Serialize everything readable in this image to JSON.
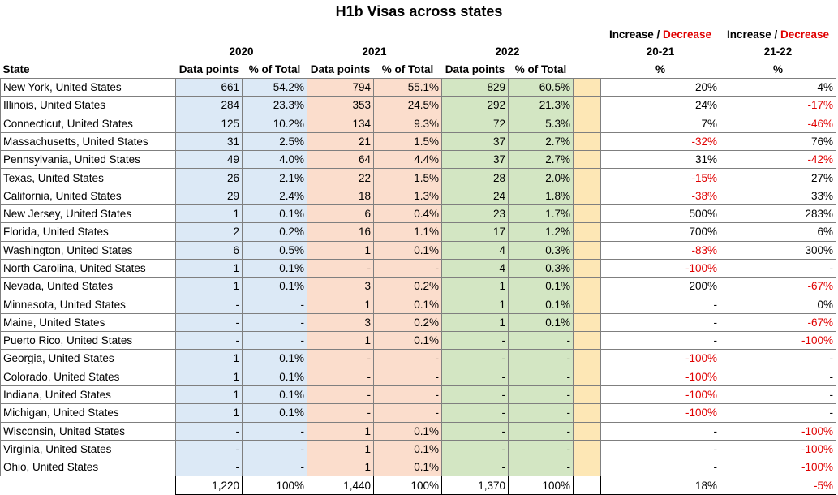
{
  "title": "H1b Visas across states",
  "header": {
    "inc_word": "Increase",
    "slash": " / ",
    "dec_word": "Decrease",
    "years": [
      "2020",
      "2021",
      "2022"
    ],
    "periods": [
      "20-21",
      "21-22"
    ],
    "state_label": "State",
    "dp_label": "Data points",
    "pct_label": "% of Total",
    "pct_sign": "%"
  },
  "rows": [
    [
      "New York, United States",
      "661",
      "54.2%",
      "794",
      "55.1%",
      "829",
      "60.5%",
      "20%",
      "4%"
    ],
    [
      "Illinois, United States",
      "284",
      "23.3%",
      "353",
      "24.5%",
      "292",
      "21.3%",
      "24%",
      "-17%"
    ],
    [
      "Connecticut, United States",
      "125",
      "10.2%",
      "134",
      "9.3%",
      "72",
      "5.3%",
      "7%",
      "-46%"
    ],
    [
      "Massachusetts, United States",
      "31",
      "2.5%",
      "21",
      "1.5%",
      "37",
      "2.7%",
      "-32%",
      "76%"
    ],
    [
      "Pennsylvania, United States",
      "49",
      "4.0%",
      "64",
      "4.4%",
      "37",
      "2.7%",
      "31%",
      "-42%"
    ],
    [
      "Texas, United States",
      "26",
      "2.1%",
      "22",
      "1.5%",
      "28",
      "2.0%",
      "-15%",
      "27%"
    ],
    [
      "California, United States",
      "29",
      "2.4%",
      "18",
      "1.3%",
      "24",
      "1.8%",
      "-38%",
      "33%"
    ],
    [
      "New Jersey, United States",
      "1",
      "0.1%",
      "6",
      "0.4%",
      "23",
      "1.7%",
      "500%",
      "283%"
    ],
    [
      "Florida, United States",
      "2",
      "0.2%",
      "16",
      "1.1%",
      "17",
      "1.2%",
      "700%",
      "6%"
    ],
    [
      "Washington, United States",
      "6",
      "0.5%",
      "1",
      "0.1%",
      "4",
      "0.3%",
      "-83%",
      "300%"
    ],
    [
      "North Carolina, United States",
      "1",
      "0.1%",
      "-",
      "-",
      "4",
      "0.3%",
      "-100%",
      "-"
    ],
    [
      "Nevada, United States",
      "1",
      "0.1%",
      "3",
      "0.2%",
      "1",
      "0.1%",
      "200%",
      "-67%"
    ],
    [
      "Minnesota, United States",
      "-",
      "-",
      "1",
      "0.1%",
      "1",
      "0.1%",
      "-",
      "0%"
    ],
    [
      "Maine, United States",
      "-",
      "-",
      "3",
      "0.2%",
      "1",
      "0.1%",
      "-",
      "-67%"
    ],
    [
      "Puerto Rico, United States",
      "-",
      "-",
      "1",
      "0.1%",
      "-",
      "-",
      "-",
      "-100%"
    ],
    [
      "Georgia, United States",
      "1",
      "0.1%",
      "-",
      "-",
      "-",
      "-",
      "-100%",
      "-"
    ],
    [
      "Colorado, United States",
      "1",
      "0.1%",
      "-",
      "-",
      "-",
      "-",
      "-100%",
      "-"
    ],
    [
      "Indiana, United States",
      "1",
      "0.1%",
      "-",
      "-",
      "-",
      "-",
      "-100%",
      "-"
    ],
    [
      "Michigan, United States",
      "1",
      "0.1%",
      "-",
      "-",
      "-",
      "-",
      "-100%",
      "-"
    ],
    [
      "Wisconsin, United States",
      "-",
      "-",
      "1",
      "0.1%",
      "-",
      "-",
      "-",
      "-100%"
    ],
    [
      "Virginia, United States",
      "-",
      "-",
      "1",
      "0.1%",
      "-",
      "-",
      "-",
      "-100%"
    ],
    [
      "Ohio, United States",
      "-",
      "-",
      "1",
      "0.1%",
      "-",
      "-",
      "-",
      "-100%"
    ]
  ],
  "totals": [
    "1,220",
    "100%",
    "1,440",
    "100%",
    "1,370",
    "100%",
    "18%",
    "-5%"
  ],
  "colors": {
    "blue": "#dce9f6",
    "peach": "#fbddcc",
    "green": "#d3e6c3",
    "yellow": "#fde7b5",
    "negative": "#e00000"
  }
}
